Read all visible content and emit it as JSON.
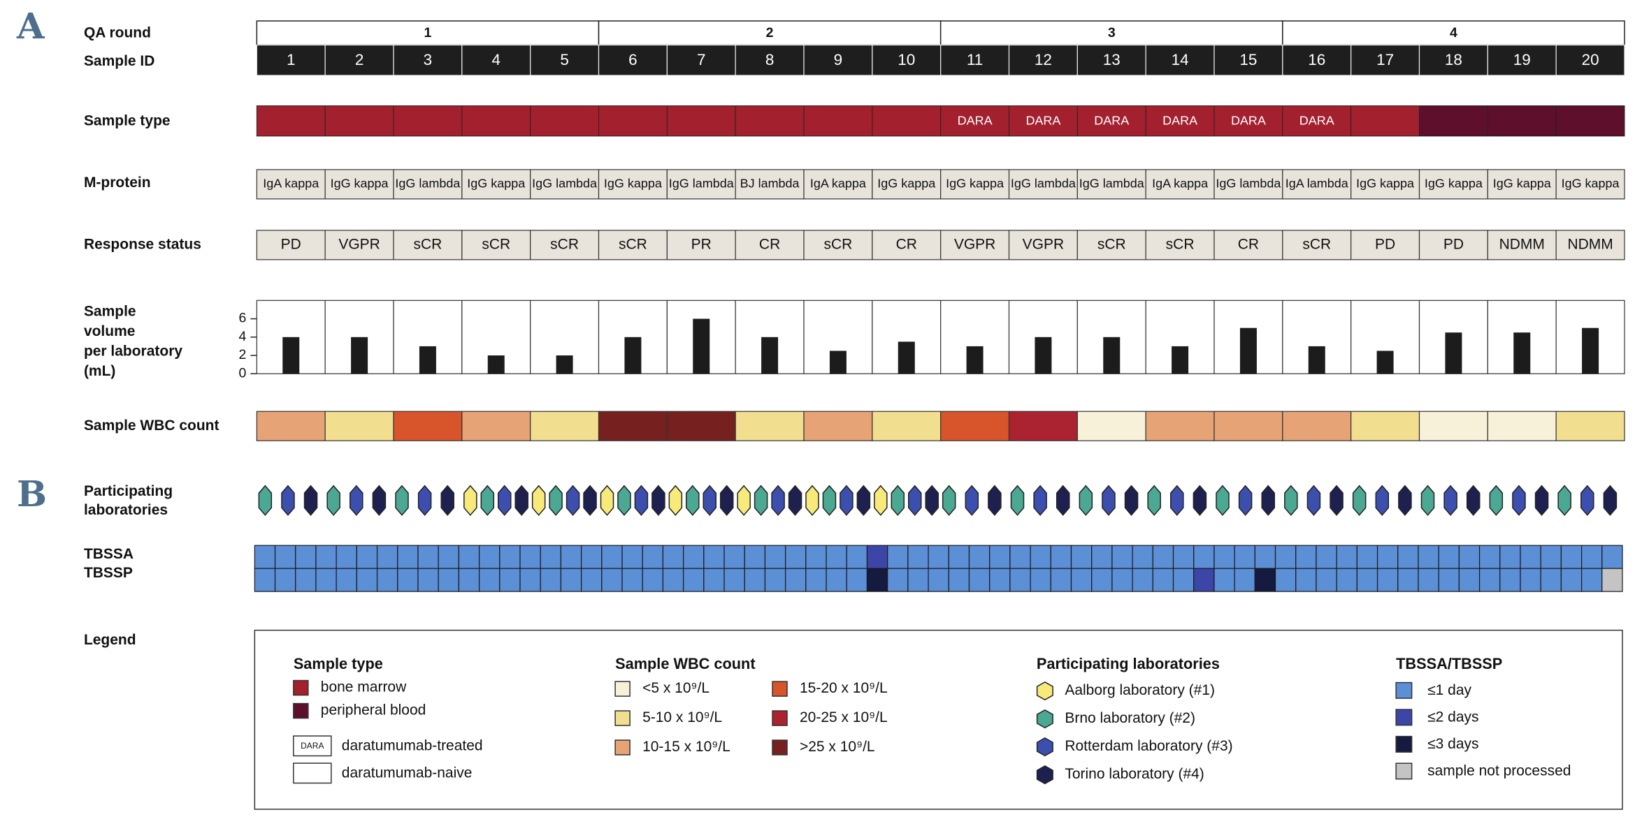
{
  "panels": [
    "A",
    "B"
  ],
  "rows": {
    "qa_round": "QA round",
    "sample_id": "Sample ID",
    "sample_type": "Sample type",
    "m_protein": "M-protein",
    "response": "Response status",
    "volume": [
      "Sample",
      "volume",
      "per laboratory",
      "(mL)"
    ],
    "wbc": "Sample WBC count",
    "labs": [
      "Participating",
      "laboratories"
    ],
    "tbssa": "TBSSA",
    "tbssp": "TBSSP",
    "legend": "Legend"
  },
  "qa_rounds": [
    "1",
    "2",
    "3",
    "4"
  ],
  "sample_ids": [
    "1",
    "2",
    "3",
    "4",
    "5",
    "6",
    "7",
    "8",
    "9",
    "10",
    "11",
    "12",
    "13",
    "14",
    "15",
    "16",
    "17",
    "18",
    "19",
    "20"
  ],
  "sample_type": [
    0,
    0,
    0,
    0,
    0,
    0,
    0,
    0,
    0,
    0,
    0,
    0,
    0,
    0,
    0,
    0,
    0,
    1,
    1,
    1
  ],
  "dara_tag": [
    null,
    null,
    null,
    null,
    null,
    null,
    null,
    null,
    null,
    null,
    "DARA",
    "DARA",
    "DARA",
    "DARA",
    "DARA",
    "DARA",
    null,
    null,
    null,
    null
  ],
  "m_protein": [
    "IgA kappa",
    "IgG kappa",
    "IgG lambda",
    "IgG kappa",
    "IgG lambda",
    "IgG kappa",
    "IgG lambda",
    "BJ lambda",
    "IgA kappa",
    "IgG kappa",
    "IgG kappa",
    "IgG lambda",
    "IgG lambda",
    "IgA kappa",
    "IgG lambda",
    "IgA lambda",
    "IgG kappa",
    "IgG kappa",
    "IgG kappa",
    "IgG kappa"
  ],
  "response": [
    "PD",
    "VGPR",
    "sCR",
    "sCR",
    "sCR",
    "sCR",
    "PR",
    "CR",
    "sCR",
    "CR",
    "VGPR",
    "VGPR",
    "sCR",
    "sCR",
    "CR",
    "sCR",
    "PD",
    "PD",
    "NDMM",
    "NDMM"
  ],
  "volume": {
    "type": "bar",
    "ylim": [
      0,
      8
    ],
    "yticks": [
      0,
      2,
      4,
      6
    ],
    "color": "#1c1c1c",
    "values": [
      4,
      4,
      3,
      2,
      2,
      4,
      6,
      4,
      2.5,
      3.5,
      3,
      4,
      4,
      3,
      5,
      3,
      2.5,
      4.5,
      4.5,
      5
    ]
  },
  "wbc": [
    2,
    1,
    3,
    2,
    1,
    5,
    5,
    1,
    2,
    1,
    3,
    4,
    0,
    2,
    2,
    2,
    1,
    0,
    0,
    1
  ],
  "labs": [
    [
      1,
      2,
      3
    ],
    [
      1,
      2,
      3
    ],
    [
      1,
      2,
      3
    ],
    [
      0,
      1,
      2,
      3
    ],
    [
      0,
      1,
      2,
      3
    ],
    [
      0,
      1,
      2,
      3
    ],
    [
      0,
      1,
      2,
      3
    ],
    [
      0,
      1,
      2,
      3
    ],
    [
      0,
      1,
      2,
      3
    ],
    [
      0,
      1,
      2,
      3
    ],
    [
      1,
      2,
      3
    ],
    [
      1,
      2,
      3
    ],
    [
      1,
      2,
      3
    ],
    [
      1,
      2,
      3
    ],
    [
      1,
      2,
      3
    ],
    [
      1,
      2,
      3
    ],
    [
      1,
      2,
      3
    ],
    [
      1,
      2,
      3
    ],
    [
      1,
      2,
      3
    ],
    [
      1,
      2,
      3
    ]
  ],
  "tbssa": [
    0,
    0,
    0,
    0,
    0,
    0,
    0,
    0,
    0,
    0,
    0,
    0,
    0,
    0,
    0,
    0,
    0,
    0,
    0,
    0,
    0,
    0,
    0,
    0,
    0,
    0,
    0,
    0,
    0,
    0,
    1,
    0,
    0,
    0,
    0,
    0,
    0,
    0,
    0,
    0,
    0,
    0,
    0,
    0,
    0,
    0,
    0,
    0,
    0,
    0,
    0,
    0,
    0,
    0,
    0,
    0,
    0,
    0,
    0,
    0,
    0,
    0,
    0,
    0,
    0,
    0,
    0
  ],
  "tbssp": [
    0,
    0,
    0,
    0,
    0,
    0,
    0,
    0,
    0,
    0,
    0,
    0,
    0,
    0,
    0,
    0,
    0,
    0,
    0,
    0,
    0,
    0,
    0,
    0,
    0,
    0,
    0,
    0,
    0,
    0,
    2,
    0,
    0,
    0,
    0,
    0,
    0,
    0,
    0,
    0,
    0,
    0,
    0,
    0,
    0,
    0,
    1,
    0,
    0,
    2,
    0,
    0,
    0,
    0,
    0,
    0,
    0,
    0,
    0,
    0,
    0,
    0,
    0,
    0,
    0,
    0,
    3
  ],
  "legend": {
    "sample_type": {
      "title": "Sample type",
      "items": [
        {
          "label": "bone marrow",
          "color": "#a3202f"
        },
        {
          "label": "peripheral blood",
          "color": "#5e0f2c"
        }
      ],
      "dara": [
        {
          "tag": "DARA",
          "label": "daratumumab-treated"
        },
        {
          "label": "daratumumab-naive"
        }
      ]
    },
    "wbc": {
      "title": "Sample WBC count",
      "items": [
        {
          "label": "<5 x 10⁹/L",
          "color": "#f8f1da"
        },
        {
          "label": "5-10 x 10⁹/L",
          "color": "#f2de8f"
        },
        {
          "label": "10-15 x 10⁹/L",
          "color": "#e6a375"
        },
        {
          "label": "15-20 x 10⁹/L",
          "color": "#d8542a"
        },
        {
          "label": "20-25 x 10⁹/L",
          "color": "#ab2330"
        },
        {
          "label": ">25 x 10⁹/L",
          "color": "#76201f"
        }
      ]
    },
    "labs": {
      "title": "Participating laboratories",
      "items": [
        {
          "label": "Aalborg laboratory (#1)",
          "color": "#f7ea7a"
        },
        {
          "label": "Brno laboratory (#2)",
          "color": "#4aa893"
        },
        {
          "label": "Rotterdam laboratory (#3)",
          "color": "#3d4fae"
        },
        {
          "label": "Torino laboratory (#4)",
          "color": "#1e2150"
        }
      ]
    },
    "tbss": {
      "title": "TBSSA/TBSSP",
      "items": [
        {
          "label": "≤1 day",
          "color": "#5b8fd6"
        },
        {
          "label": "≤2 days",
          "color": "#3c46a8"
        },
        {
          "label": "≤3 days",
          "color": "#151a40"
        },
        {
          "label": "sample not processed",
          "color": "#c4c4c4"
        }
      ]
    }
  }
}
